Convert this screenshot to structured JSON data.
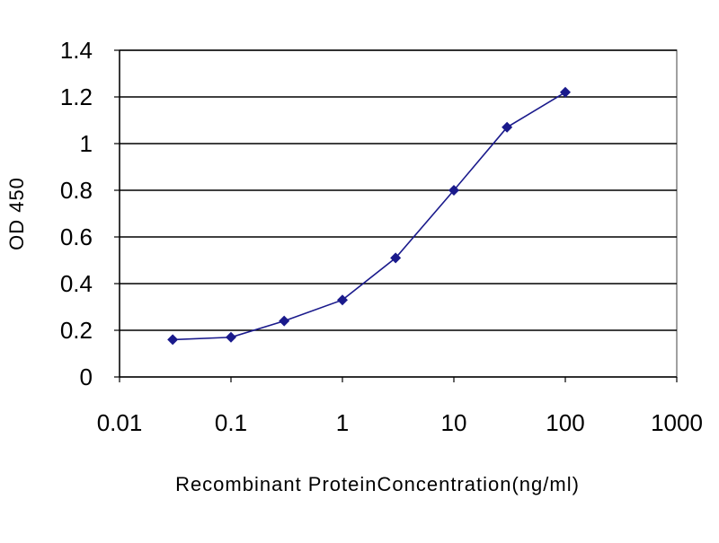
{
  "chart_data": {
    "type": "line",
    "title": "",
    "xlabel": "Recombinant ProteinConcentration(ng/ml)",
    "ylabel": "OD 450",
    "x_scale": "log",
    "xlim": [
      0.01,
      1000
    ],
    "ylim": [
      0,
      1.4
    ],
    "x_ticks": [
      "0.01",
      "0.1",
      "1",
      "10",
      "100",
      "1000"
    ],
    "y_ticks": [
      "0",
      "0.2",
      "0.4",
      "0.6",
      "0.8",
      "1",
      "1.2",
      "1.4"
    ],
    "grid": "horizontal",
    "legend": "none",
    "series": [
      {
        "x": [
          0.03,
          0.1,
          0.3,
          1,
          3,
          10,
          30,
          100
        ],
        "y": [
          0.16,
          0.17,
          0.24,
          0.33,
          0.51,
          0.8,
          1.07,
          1.22
        ]
      }
    ],
    "colors": {
      "series": "#1a1a8c",
      "plot_background": "#ffffff",
      "grid": "#000000",
      "frame": "#808080"
    }
  }
}
